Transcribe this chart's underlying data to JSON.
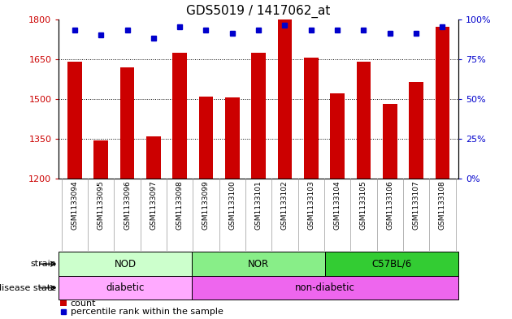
{
  "title": "GDS5019 / 1417062_at",
  "samples": [
    "GSM1133094",
    "GSM1133095",
    "GSM1133096",
    "GSM1133097",
    "GSM1133098",
    "GSM1133099",
    "GSM1133100",
    "GSM1133101",
    "GSM1133102",
    "GSM1133103",
    "GSM1133104",
    "GSM1133105",
    "GSM1133106",
    "GSM1133107",
    "GSM1133108"
  ],
  "counts": [
    1640,
    1345,
    1620,
    1360,
    1675,
    1510,
    1505,
    1675,
    1800,
    1655,
    1520,
    1640,
    1480,
    1565,
    1770
  ],
  "percentiles": [
    93,
    90,
    93,
    88,
    95,
    93,
    91,
    93,
    96,
    93,
    93,
    93,
    91,
    91,
    95
  ],
  "bar_color": "#cc0000",
  "dot_color": "#0000cc",
  "ylim_left": [
    1200,
    1800
  ],
  "ylim_right": [
    0,
    100
  ],
  "yticks_left": [
    1200,
    1350,
    1500,
    1650,
    1800
  ],
  "yticks_right": [
    0,
    25,
    50,
    75,
    100
  ],
  "strain_groups": [
    {
      "label": "NOD",
      "start": 0,
      "end": 5,
      "color": "#ccffcc"
    },
    {
      "label": "NOR",
      "start": 5,
      "end": 10,
      "color": "#88ee88"
    },
    {
      "label": "C57BL/6",
      "start": 10,
      "end": 15,
      "color": "#33cc33"
    }
  ],
  "disease_groups": [
    {
      "label": "diabetic",
      "start": 0,
      "end": 5,
      "color": "#ffaaff"
    },
    {
      "label": "non-diabetic",
      "start": 5,
      "end": 15,
      "color": "#ee66ee"
    }
  ],
  "strain_label": "strain",
  "disease_label": "disease state",
  "legend_count_label": "count",
  "legend_percentile_label": "percentile rank within the sample",
  "background_color": "#ffffff",
  "xtick_bg_color": "#c8c8c8",
  "title_fontsize": 11,
  "tick_fontsize": 8,
  "label_fontsize": 8,
  "bar_width": 0.55
}
